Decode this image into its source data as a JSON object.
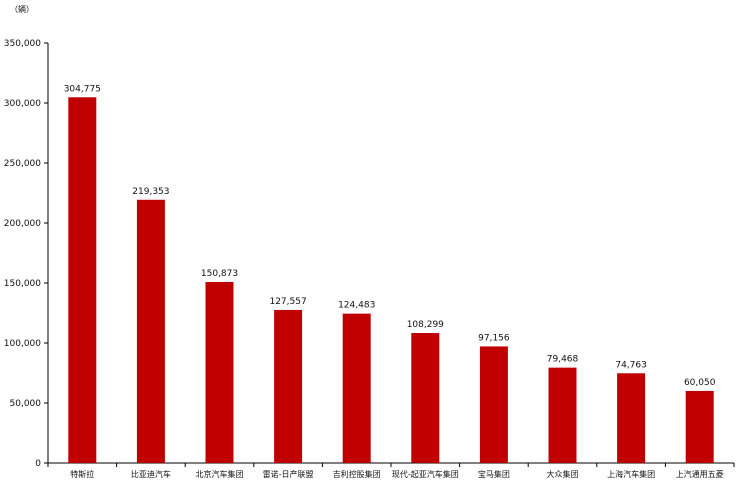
{
  "chart_data": {
    "type": "bar",
    "unit_label": "（辆）",
    "categories": [
      "特斯拉",
      "比亚迪汽车",
      "北京汽车集团",
      "雷诺-日产联盟",
      "吉利控股集团",
      "现代-起亚汽车集团",
      "宝马集团",
      "大众集团",
      "上海汽车集团",
      "上汽通用五菱"
    ],
    "values": [
      304775,
      219353,
      150873,
      127557,
      124483,
      108299,
      97156,
      79468,
      74763,
      60050
    ],
    "data_labels": [
      "304,775",
      "219,353",
      "150,873",
      "127,557",
      "124,483",
      "108,299",
      "97,156",
      "79,468",
      "74,763",
      "60,050"
    ],
    "ylim": [
      0,
      350000
    ],
    "y_ticks": [
      0,
      50000,
      100000,
      150000,
      200000,
      250000,
      300000,
      350000
    ],
    "y_tick_labels": [
      "0",
      "50,000",
      "100,000",
      "150,000",
      "200,000",
      "250,000",
      "300,000",
      "350,000"
    ],
    "bar_color": "#c00000",
    "grid": false,
    "legend": "none"
  }
}
